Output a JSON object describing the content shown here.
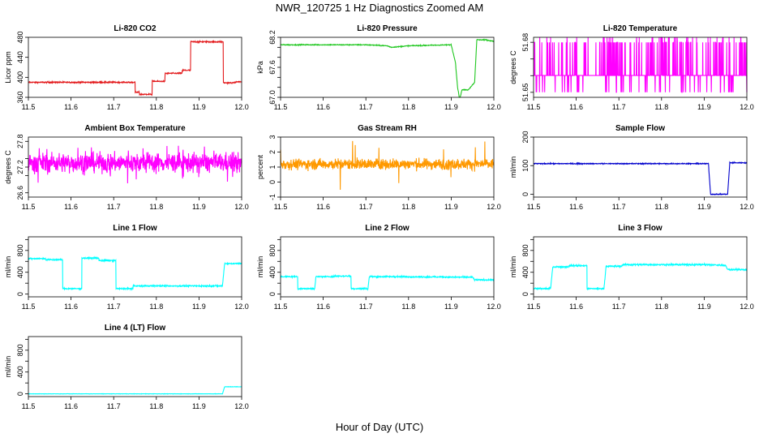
{
  "figure": {
    "title": "NWR_120725  1 Hz Diagnostics Zoomed AM",
    "xlabel": "Hour of Day (UTC)"
  },
  "chart_data": [
    {
      "type": "line",
      "title": "Li-820 CO2",
      "ylabel": "Licor ppm",
      "color": "#e31a1c",
      "xlim": [
        11.5,
        12.0
      ],
      "xticks": [
        11.5,
        11.6,
        11.7,
        11.8,
        11.9,
        12.0
      ],
      "xtick_labels": [
        "11.5",
        "11.6",
        "11.7",
        "11.8",
        "11.9",
        "12.0"
      ],
      "ylim": [
        360,
        480
      ],
      "yticks": [
        360,
        400,
        440,
        480
      ],
      "ytick_labels": [
        "360",
        "400",
        "440",
        "480"
      ],
      "series": [
        {
          "x": [
            11.5,
            11.75,
            11.75,
            11.76,
            11.76,
            11.79,
            11.79,
            11.82,
            11.82,
            11.86,
            11.86,
            11.88,
            11.88,
            11.957,
            11.957,
            11.98,
            11.99,
            12.0
          ],
          "y": [
            390,
            390,
            370,
            370,
            366,
            366,
            392,
            392,
            408,
            408,
            414,
            414,
            471,
            471,
            389,
            389,
            391,
            391
          ],
          "noise": 1.2
        }
      ]
    },
    {
      "type": "line",
      "title": "Li-820 Pressure",
      "ylabel": "kPa",
      "color": "#1fc71f",
      "xlim": [
        11.5,
        12.0
      ],
      "xticks": [
        11.5,
        11.6,
        11.7,
        11.8,
        11.9,
        12.0
      ],
      "xtick_labels": [
        "11.5",
        "11.6",
        "11.7",
        "11.8",
        "11.9",
        "12.0"
      ],
      "ylim": [
        67.0,
        68.2
      ],
      "yticks": [
        67.0,
        67.2,
        67.4,
        67.6,
        67.8,
        68.0,
        68.2
      ],
      "ytick_labels": [
        "67.0",
        "",
        "",
        "67.6",
        "",
        "",
        "68.2"
      ],
      "series": [
        {
          "x": [
            11.5,
            11.6,
            11.7,
            11.75,
            11.76,
            11.8,
            11.9,
            11.91,
            11.915,
            11.92,
            11.925,
            11.94,
            11.955,
            11.96,
            11.965,
            11.98,
            12.0
          ],
          "y": [
            68.05,
            68.05,
            68.05,
            68.03,
            68.0,
            68.03,
            68.05,
            67.7,
            67.2,
            66.95,
            67.15,
            67.15,
            67.3,
            68.15,
            68.15,
            68.15,
            68.12
          ],
          "noise": 0.008
        }
      ]
    },
    {
      "type": "line",
      "title": "Li-820 Temperature",
      "ylabel": "degrees C",
      "color": "#ff00ff",
      "xlim": [
        11.5,
        12.0
      ],
      "xticks": [
        11.5,
        11.6,
        11.7,
        11.8,
        11.9,
        12.0
      ],
      "xtick_labels": [
        "11.5",
        "11.6",
        "11.7",
        "11.8",
        "11.9",
        "12.0"
      ],
      "ylim": [
        51.647,
        51.683
      ],
      "yticks": [
        51.65,
        51.66,
        51.67,
        51.68
      ],
      "ytick_labels": [
        "51.65",
        "",
        "",
        "51.68"
      ],
      "series": [
        {
          "x": [
            11.5,
            12.0
          ],
          "y": [
            51.6601,
            51.6601
          ],
          "quantized": [
            51.65,
            51.6601,
            51.6701,
            51.68,
            51.69
          ],
          "noise": 0
        }
      ]
    },
    {
      "type": "line",
      "title": "Ambient Box Temperature",
      "ylabel": "degrees C",
      "color": "#ff00ff",
      "xlim": [
        11.5,
        12.0
      ],
      "xticks": [
        11.5,
        11.6,
        11.7,
        11.8,
        11.9,
        12.0
      ],
      "xtick_labels": [
        "11.5",
        "11.6",
        "11.7",
        "11.8",
        "11.9",
        "12.0"
      ],
      "ylim": [
        26.5,
        27.9
      ],
      "yticks": [
        26.6,
        27.0,
        27.2,
        27.4,
        27.8
      ],
      "ytick_labels": [
        "26.6",
        "",
        "27.2",
        "",
        "27.8"
      ],
      "series": [
        {
          "x": [
            11.5,
            12.0
          ],
          "y": [
            27.3,
            27.3
          ],
          "noise": 0.22
        }
      ]
    },
    {
      "type": "line",
      "title": "Gas Stream RH",
      "ylabel": "percent",
      "color": "#ff9900",
      "xlim": [
        11.5,
        12.0
      ],
      "xticks": [
        11.5,
        11.6,
        11.7,
        11.8,
        11.9,
        12.0
      ],
      "xtick_labels": [
        "11.5",
        "11.6",
        "11.7",
        "11.8",
        "11.9",
        "12.0"
      ],
      "ylim": [
        -1,
        3
      ],
      "yticks": [
        -1,
        0,
        1,
        2,
        3
      ],
      "ytick_labels": [
        "-1",
        "0",
        "1",
        "2",
        "3"
      ],
      "series": [
        {
          "x": [
            11.5,
            12.0
          ],
          "y": [
            1.2,
            1.2
          ],
          "noise": 0.35
        }
      ]
    },
    {
      "type": "line",
      "title": "Sample Flow",
      "ylabel": "ml/min",
      "color": "#0000cc",
      "xlim": [
        11.5,
        12.0
      ],
      "xticks": [
        11.5,
        11.6,
        11.7,
        11.8,
        11.9,
        12.0
      ],
      "xtick_labels": [
        "11.5",
        "11.6",
        "11.7",
        "11.8",
        "11.9",
        "12.0"
      ],
      "ylim": [
        -10,
        200
      ],
      "yticks": [
        0,
        100,
        200
      ],
      "ytick_labels": [
        "0",
        "100",
        "200"
      ],
      "series": [
        {
          "x": [
            11.5,
            11.91,
            11.915,
            11.955,
            11.96,
            12.0
          ],
          "y": [
            107,
            107,
            0,
            0,
            110,
            110
          ],
          "noise": 1.5
        }
      ]
    },
    {
      "type": "line",
      "title": "Line 1 Flow",
      "ylabel": "ml/min",
      "color": "#00ffff",
      "xlim": [
        11.5,
        12.0
      ],
      "xticks": [
        11.5,
        11.6,
        11.7,
        11.8,
        11.9,
        12.0
      ],
      "xtick_labels": [
        "11.5",
        "11.6",
        "11.7",
        "11.8",
        "11.9",
        "12.0"
      ],
      "ylim": [
        -50,
        1050
      ],
      "yticks": [
        0,
        200,
        400,
        600,
        800,
        1000
      ],
      "ytick_labels": [
        "0",
        "",
        "400",
        "",
        "800",
        ""
      ],
      "series": [
        {
          "x": [
            11.5,
            11.54,
            11.54,
            11.58,
            11.58,
            11.625,
            11.625,
            11.665,
            11.665,
            11.705,
            11.705,
            11.745,
            11.745,
            11.955,
            11.96,
            12.0
          ],
          "y": [
            650,
            650,
            630,
            630,
            100,
            100,
            660,
            660,
            615,
            615,
            100,
            100,
            150,
            150,
            560,
            560
          ],
          "noise": 12
        }
      ]
    },
    {
      "type": "line",
      "title": "Line 2 Flow",
      "ylabel": "ml/min",
      "color": "#00ffff",
      "xlim": [
        11.5,
        12.0
      ],
      "xticks": [
        11.5,
        11.6,
        11.7,
        11.8,
        11.9,
        12.0
      ],
      "xtick_labels": [
        "11.5",
        "11.6",
        "11.7",
        "11.8",
        "11.9",
        "12.0"
      ],
      "ylim": [
        -50,
        1050
      ],
      "yticks": [
        0,
        200,
        400,
        600,
        800,
        1000
      ],
      "ytick_labels": [
        "0",
        "",
        "400",
        "",
        "800",
        ""
      ],
      "series": [
        {
          "x": [
            11.5,
            11.54,
            11.54,
            11.58,
            11.583,
            11.625,
            11.625,
            11.665,
            11.665,
            11.705,
            11.708,
            11.75,
            11.95,
            11.955,
            12.0
          ],
          "y": [
            320,
            320,
            100,
            100,
            320,
            320,
            330,
            330,
            100,
            100,
            320,
            320,
            310,
            260,
            260
          ],
          "noise": 12
        }
      ]
    },
    {
      "type": "line",
      "title": "Line 3 Flow",
      "ylabel": "ml/min",
      "color": "#00ffff",
      "xlim": [
        11.5,
        12.0
      ],
      "xticks": [
        11.5,
        11.6,
        11.7,
        11.8,
        11.9,
        12.0
      ],
      "xtick_labels": [
        "11.5",
        "11.6",
        "11.7",
        "11.8",
        "11.9",
        "12.0"
      ],
      "ylim": [
        -50,
        1050
      ],
      "yticks": [
        0,
        200,
        400,
        600,
        800,
        1000
      ],
      "ytick_labels": [
        "0",
        "",
        "400",
        "",
        "800",
        ""
      ],
      "series": [
        {
          "x": [
            11.5,
            11.54,
            11.545,
            11.58,
            11.585,
            11.625,
            11.625,
            11.665,
            11.67,
            11.705,
            11.71,
            11.9,
            11.95,
            11.955,
            12.0
          ],
          "y": [
            100,
            100,
            500,
            500,
            520,
            520,
            100,
            100,
            510,
            510,
            540,
            540,
            530,
            450,
            450
          ],
          "noise": 14
        }
      ]
    },
    {
      "type": "line",
      "title": "Line 4 (LT) Flow",
      "ylabel": "ml/min",
      "color": "#00ffff",
      "xlim": [
        11.5,
        12.0
      ],
      "xticks": [
        11.5,
        11.6,
        11.7,
        11.8,
        11.9,
        12.0
      ],
      "xtick_labels": [
        "11.5",
        "11.6",
        "11.7",
        "11.8",
        "11.9",
        "12.0"
      ],
      "ylim": [
        -50,
        1050
      ],
      "yticks": [
        0,
        200,
        400,
        600,
        800,
        1000
      ],
      "ytick_labels": [
        "0",
        "",
        "400",
        "",
        "800",
        ""
      ],
      "series": [
        {
          "x": [
            11.5,
            11.955,
            11.96,
            12.0
          ],
          "y": [
            0,
            0,
            130,
            130
          ],
          "noise": 3
        }
      ]
    }
  ]
}
